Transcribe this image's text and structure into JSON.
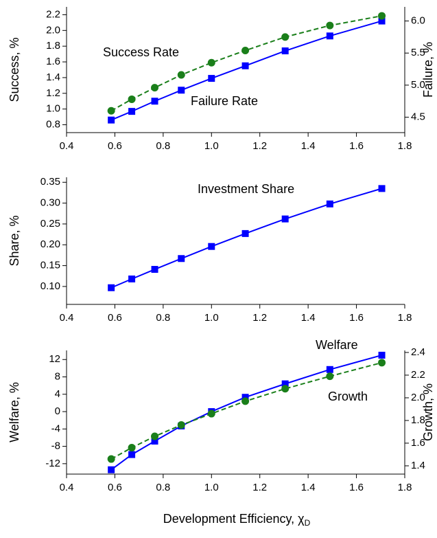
{
  "chart_data": [
    {
      "type": "line",
      "x": [
        0.585,
        0.67,
        0.765,
        0.875,
        1.0,
        1.14,
        1.305,
        1.49,
        1.705
      ],
      "xlim": [
        0.4,
        1.8
      ],
      "xticks": [
        0.4,
        0.6,
        0.8,
        {
          "value": 1.0,
          "label": "1.0"
        },
        1.2,
        1.4,
        1.6,
        1.8
      ],
      "ylabel": "Success, %",
      "y2label": "Failure, %",
      "ylim": [
        0.7,
        2.3
      ],
      "yticks": [
        0.8,
        {
          "value": 1.0,
          "label": "1.0"
        },
        1.2,
        1.4,
        1.6,
        1.8,
        {
          "value": 2.0,
          "label": "2.0"
        },
        2.2
      ],
      "y2lim": [
        4.26,
        6.22
      ],
      "y2ticks": [
        4.5,
        {
          "value": 5.0,
          "label": "5.0"
        },
        5.5,
        {
          "value": 6.0,
          "label": "6.0"
        }
      ],
      "series": [
        {
          "name": "Success Rate",
          "color": "#0000ff",
          "marker": "square",
          "dashed": false,
          "values": [
            0.86,
            0.97,
            1.1,
            1.24,
            1.39,
            1.55,
            1.74,
            1.93,
            2.12
          ]
        },
        {
          "name": "Failure Rate",
          "color": "#1a7f1a",
          "marker": "circle",
          "dashed": true,
          "axis": "y2",
          "values": [
            4.6,
            4.78,
            4.96,
            5.16,
            5.35,
            5.54,
            5.75,
            5.93,
            6.08
          ]
        }
      ]
    },
    {
      "type": "line",
      "x": [
        0.585,
        0.67,
        0.765,
        0.875,
        1.0,
        1.14,
        1.305,
        1.49,
        1.705
      ],
      "xlim": [
        0.4,
        1.8
      ],
      "xticks": [
        0.4,
        0.6,
        0.8,
        {
          "value": 1.0,
          "label": "1.0"
        },
        1.2,
        1.4,
        1.6,
        1.8
      ],
      "ylabel": "Share, %",
      "ylim": [
        0.057,
        0.362
      ],
      "yticks": [
        {
          "value": 0.1,
          "label": "0.10"
        },
        0.15,
        {
          "value": 0.2,
          "label": "0.20"
        },
        0.25,
        {
          "value": 0.3,
          "label": "0.30"
        },
        0.35
      ],
      "series": [
        {
          "name": "Investment Share",
          "color": "#0000ff",
          "marker": "square",
          "dashed": false,
          "values": [
            0.097,
            0.118,
            0.141,
            0.167,
            0.196,
            0.227,
            0.262,
            0.298,
            0.335
          ]
        }
      ]
    },
    {
      "type": "line",
      "x": [
        0.585,
        0.67,
        0.765,
        0.875,
        1.0,
        1.14,
        1.305,
        1.49,
        1.705
      ],
      "xlim": [
        0.4,
        1.8
      ],
      "xticks": [
        0.4,
        0.6,
        0.8,
        {
          "value": 1.0,
          "label": "1.0"
        },
        1.2,
        1.4,
        1.6,
        1.8
      ],
      "xlabel": "Development Efficiency, χ",
      "xlabel_subscript": "D",
      "ylabel": "Welfare, %",
      "y2label": "Growth, %",
      "ylim": [
        -14.4,
        14.1
      ],
      "yticks": [
        -12,
        -8,
        -4,
        0,
        4,
        8,
        12
      ],
      "y2lim": [
        1.327,
        2.418
      ],
      "y2ticks": [
        1.4,
        1.6,
        1.8,
        {
          "value": 2.0,
          "label": "2.0"
        },
        2.2,
        2.4
      ],
      "series": [
        {
          "name": "Welfare",
          "color": "#0000ff",
          "marker": "square",
          "dashed": false,
          "values": [
            -13.4,
            -9.9,
            -6.8,
            -3.3,
            0,
            3.3,
            6.4,
            9.7,
            13.0
          ]
        },
        {
          "name": "Growth",
          "color": "#1a7f1a",
          "marker": "circle",
          "dashed": true,
          "axis": "y2",
          "values": [
            1.46,
            1.56,
            1.66,
            1.76,
            1.86,
            1.97,
            2.08,
            2.19,
            2.31
          ]
        }
      ]
    }
  ]
}
